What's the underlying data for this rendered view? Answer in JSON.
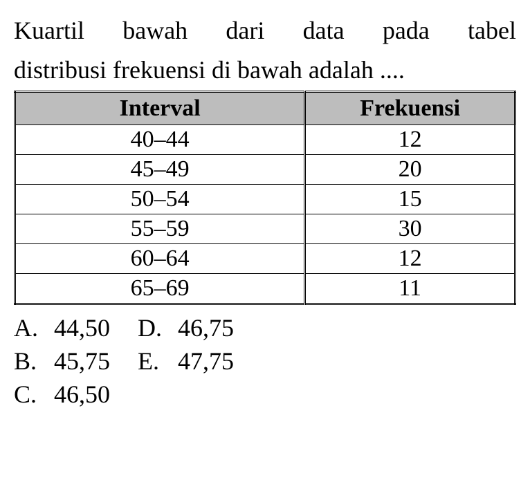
{
  "question": {
    "line1": "Kuartil bawah dari data pada tabel",
    "line2": "distribusi frekuensi di bawah adalah ...."
  },
  "table": {
    "type": "table",
    "columns": [
      "Interval",
      "Frekuensi"
    ],
    "rows": [
      [
        "40–44",
        "12"
      ],
      [
        "45–49",
        "20"
      ],
      [
        "50–54",
        "15"
      ],
      [
        "55–59",
        "30"
      ],
      [
        "60–64",
        "12"
      ],
      [
        "65–69",
        "11"
      ]
    ],
    "header_bg_color": "#bdbdbd",
    "border_color": "#000000",
    "font_size": 34
  },
  "options": {
    "A": "44,50",
    "B": "45,75",
    "C": "46,50",
    "D": "46,75",
    "E": "47,75"
  },
  "labels": {
    "A": "A.",
    "B": "B.",
    "C": "C.",
    "D": "D.",
    "E": "E."
  },
  "styling": {
    "background_color": "#ffffff",
    "text_color": "#000000",
    "font_family": "Times New Roman",
    "body_font_size": 36
  }
}
